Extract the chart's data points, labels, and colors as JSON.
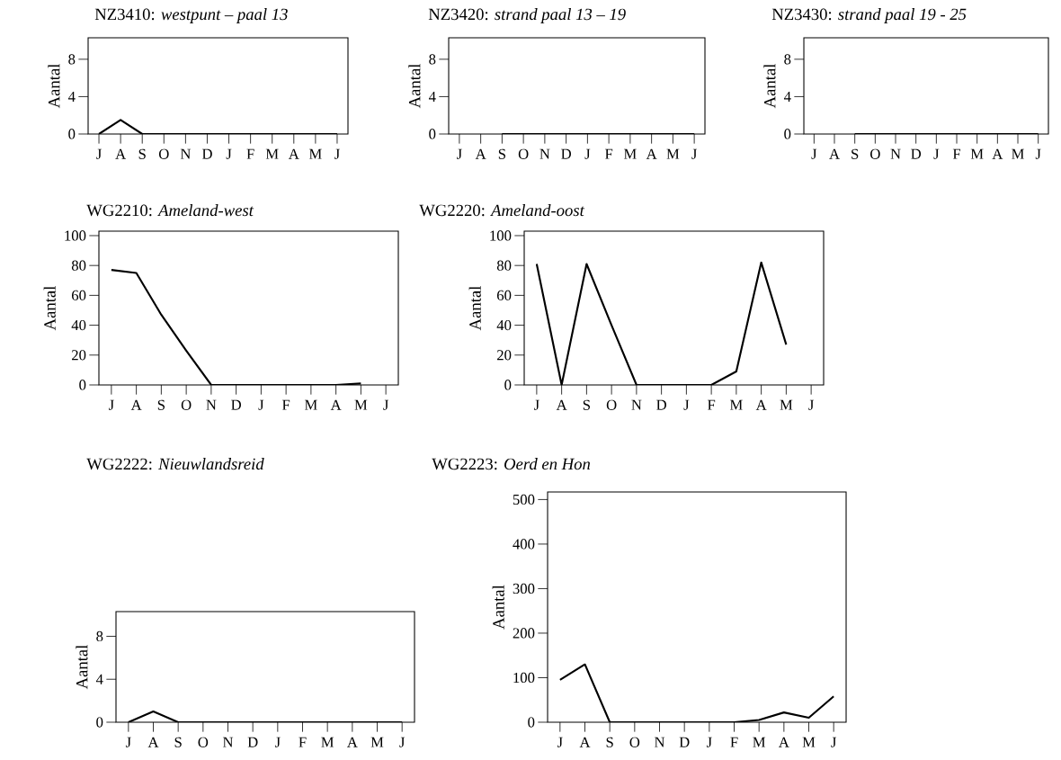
{
  "chart_data": [
    {
      "type": "line",
      "title": "NZ3410: *westpunt – paal 13*",
      "ylabel": "Aantal",
      "categories": [
        "J",
        "A",
        "S",
        "O",
        "N",
        "D",
        "J",
        "F",
        "M",
        "A",
        "M",
        "J"
      ],
      "values": [
        0,
        1.5,
        0,
        0,
        0,
        0,
        0,
        0,
        0,
        0,
        0,
        0
      ],
      "color": "#000000",
      "ylim": [
        0,
        10.3
      ],
      "yticks": [
        0,
        4,
        8
      ]
    },
    {
      "type": "line",
      "title": "NZ3420: *strand paal 13 – 19*",
      "ylabel": "Aantal",
      "categories": [
        "J",
        "A",
        "S",
        "O",
        "N",
        "D",
        "J",
        "F",
        "M",
        "A",
        "M",
        "J"
      ],
      "values": [
        null,
        null,
        0,
        0,
        0,
        0,
        0,
        0,
        0,
        0,
        0,
        0
      ],
      "color": "#000000",
      "ylim": [
        0,
        10.3
      ],
      "yticks": [
        0,
        4,
        8
      ]
    },
    {
      "type": "line",
      "title": "NZ3430: *strand paal 19 - 25*",
      "ylabel": "Aantal",
      "categories": [
        "J",
        "A",
        "S",
        "O",
        "N",
        "D",
        "J",
        "F",
        "M",
        "A",
        "M",
        "J"
      ],
      "values": [
        null,
        null,
        0,
        0,
        0,
        0,
        0,
        0,
        0,
        0,
        0,
        0
      ],
      "color": "#000000",
      "ylim": [
        0,
        10.3
      ],
      "yticks": [
        0,
        4,
        8
      ]
    },
    {
      "type": "line",
      "title": "WG2210: *Ameland-west*",
      "ylabel": "Aantal",
      "categories": [
        "J",
        "A",
        "S",
        "O",
        "N",
        "D",
        "J",
        "F",
        "M",
        "A",
        "M",
        "J"
      ],
      "values": [
        77,
        75,
        47,
        23,
        0,
        0,
        0,
        0,
        0,
        0,
        1,
        null
      ],
      "color": "#000000",
      "ylim": [
        0,
        103
      ],
      "yticks": [
        0,
        20,
        40,
        60,
        80,
        100
      ]
    },
    {
      "type": "line",
      "title": "WG2220: *Ameland-oost*",
      "ylabel": "Aantal",
      "categories": [
        "J",
        "A",
        "S",
        "O",
        "N",
        "D",
        "J",
        "F",
        "M",
        "A",
        "M",
        "J"
      ],
      "values": [
        81,
        0,
        81,
        40,
        0,
        0,
        0,
        0,
        9,
        82,
        27,
        null
      ],
      "color": "#000000",
      "ylim": [
        0,
        103
      ],
      "yticks": [
        0,
        20,
        40,
        60,
        80,
        100
      ]
    },
    {
      "type": "line",
      "title": "WG2222: *Nieuwlandsreid*",
      "ylabel": "Aantal",
      "categories": [
        "J",
        "A",
        "S",
        "O",
        "N",
        "D",
        "J",
        "F",
        "M",
        "A",
        "M",
        "J"
      ],
      "values": [
        0,
        1,
        0,
        0,
        0,
        0,
        0,
        0,
        0,
        0,
        0,
        0
      ],
      "color": "#000000",
      "ylim": [
        0,
        10.3
      ],
      "yticks": [
        0,
        4,
        8
      ]
    },
    {
      "type": "line",
      "title": "WG2223: *Oerd en Hon*",
      "ylabel": "Aantal",
      "categories": [
        "J",
        "A",
        "S",
        "O",
        "N",
        "D",
        "J",
        "F",
        "M",
        "A",
        "M",
        "J"
      ],
      "values": [
        95,
        130,
        0,
        0,
        0,
        0,
        0,
        0,
        5,
        22,
        10,
        58
      ],
      "color": "#000000",
      "ylim": [
        0,
        517
      ],
      "yticks": [
        0,
        100,
        200,
        300,
        400,
        500
      ]
    }
  ]
}
